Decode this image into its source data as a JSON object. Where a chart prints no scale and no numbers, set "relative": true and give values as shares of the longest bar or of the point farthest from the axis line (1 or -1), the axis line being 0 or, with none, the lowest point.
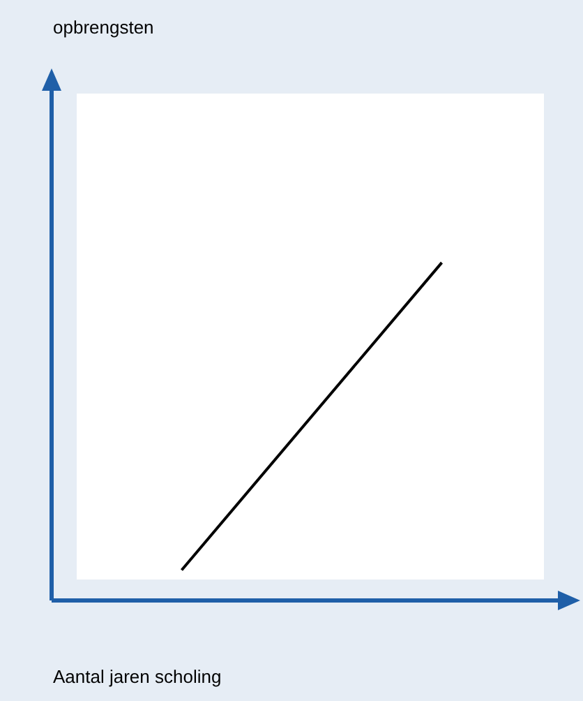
{
  "chart_data": {
    "type": "line",
    "xlabel": "Aantal jaren scholing",
    "annotations": [
      "opbrengsten"
    ],
    "categories": [
      null,
      null
    ],
    "series": [
      {
        "color": "#000000",
        "values": [
          0.09,
          1
        ]
      }
    ],
    "relative": true,
    "legend": false,
    "marker": "none",
    "line_style": "solid"
  }
}
